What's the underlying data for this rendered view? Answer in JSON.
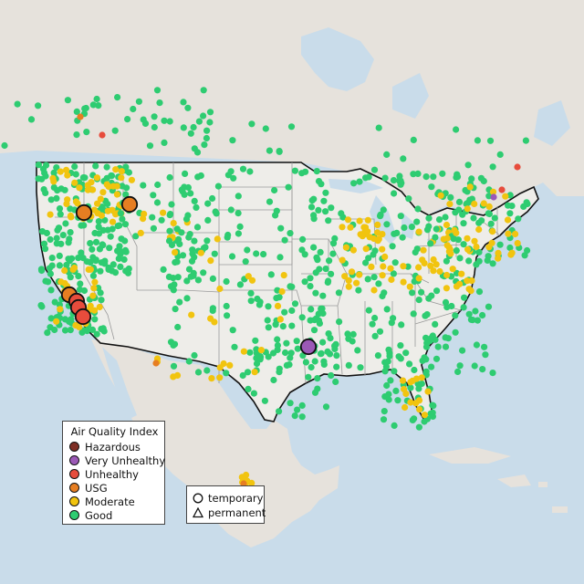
{
  "legend": {
    "title": "Air Quality Index",
    "items": [
      {
        "label": "Hazardous",
        "color": "#7e2e24"
      },
      {
        "label": "Very Unhealthy",
        "color": "#9b59b6"
      },
      {
        "label": "Unhealthy",
        "color": "#e74c3c"
      },
      {
        "label": "USG",
        "color": "#e67e22"
      },
      {
        "label": "Moderate",
        "color": "#f1c40f"
      },
      {
        "label": "Good",
        "color": "#2ecc71"
      }
    ]
  },
  "monitor_types": {
    "items": [
      {
        "label": "temporary",
        "shape": "circle"
      },
      {
        "label": "permanent",
        "shape": "triangle"
      }
    ]
  },
  "map_style": {
    "water": "#c9dcea",
    "land": "#e7e4de",
    "us_land": "#eeedea",
    "boundary": "#111111",
    "state_lines": "#9a9a9a"
  },
  "summary_counts_visible": {
    "large_markers": [
      "USG",
      "USG",
      "Unhealthy",
      "Unhealthy",
      "Unhealthy",
      "Very Unhealthy"
    ]
  }
}
